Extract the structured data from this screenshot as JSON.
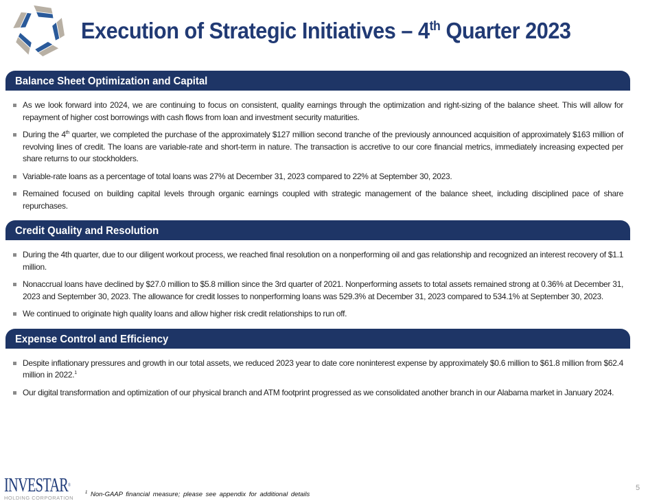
{
  "title": {
    "main": "Execution of Strategic Initiatives – 4",
    "sup": "th",
    "rest": " Quarter 2023"
  },
  "sections": [
    {
      "heading": "Balance Sheet Optimization and Capital",
      "bullets": [
        {
          "text": "As we look forward into 2024, we are continuing to focus on consistent, quality earnings through the optimization and right-sizing of the balance sheet. This will allow for repayment of higher cost borrowings with cash flows from loan and investment security maturities."
        },
        {
          "pre": "During the 4",
          "sup": "th",
          "text": " quarter, we completed the purchase of the approximately $127 million second tranche of the previously announced acquisition of approximately $163 million of revolving lines of credit. The  loans are variable-rate and short-term in nature. The transaction is accretive to our core financial metrics, immediately increasing expected per share returns to our stockholders."
        },
        {
          "text": "Variable-rate loans as a percentage of total loans was 27% at December 31, 2023 compared to 22% at September 30, 2023."
        },
        {
          "text": "Remained focused on building capital levels through organic earnings coupled with strategic management of the balance sheet, including disciplined pace of share repurchases."
        }
      ]
    },
    {
      "heading": "Credit Quality and Resolution",
      "bullets": [
        {
          "text": "During the 4th quarter, due to our diligent workout process, we reached final resolution on a nonperforming oil and gas relationship and recognized an interest recovery of $1.1 million."
        },
        {
          "text": "Nonaccrual loans have declined by $27.0 million to $5.8 million since the 3rd quarter of 2021. Nonperforming assets to total assets remained strong at 0.36% at December 31, 2023 and September 30, 2023. The allowance for credit losses to nonperforming loans was 529.3% at December 31, 2023 compared to 534.1% at September 30, 2023."
        },
        {
          "text": "We continued to originate high quality loans and allow higher risk credit relationships to run off."
        }
      ]
    },
    {
      "heading": "Expense Control and Efficiency",
      "bullets": [
        {
          "text": "Despite inflationary pressures and growth in our total assets, we reduced 2023 year to date core noninterest expense by approximately $0.6 million to $61.8 million from $62.4 million in 2022.",
          "sup_after": "1"
        },
        {
          "text": "Our digital transformation and optimization of our physical branch and ATM footprint progressed as we consolidated another branch in our Alabama market in January 2024."
        }
      ]
    }
  ],
  "footer": {
    "logo_name": "INVESTAR",
    "logo_sub": "HOLDING CORPORATION",
    "footnote_mark": "1",
    "footnote": " Non-GAAP financial measure;  please  see appendix  for additional  details",
    "page": "5"
  },
  "colors": {
    "navy": "#1e3566",
    "title": "#213a74",
    "bullet": "#8a8a8a"
  }
}
